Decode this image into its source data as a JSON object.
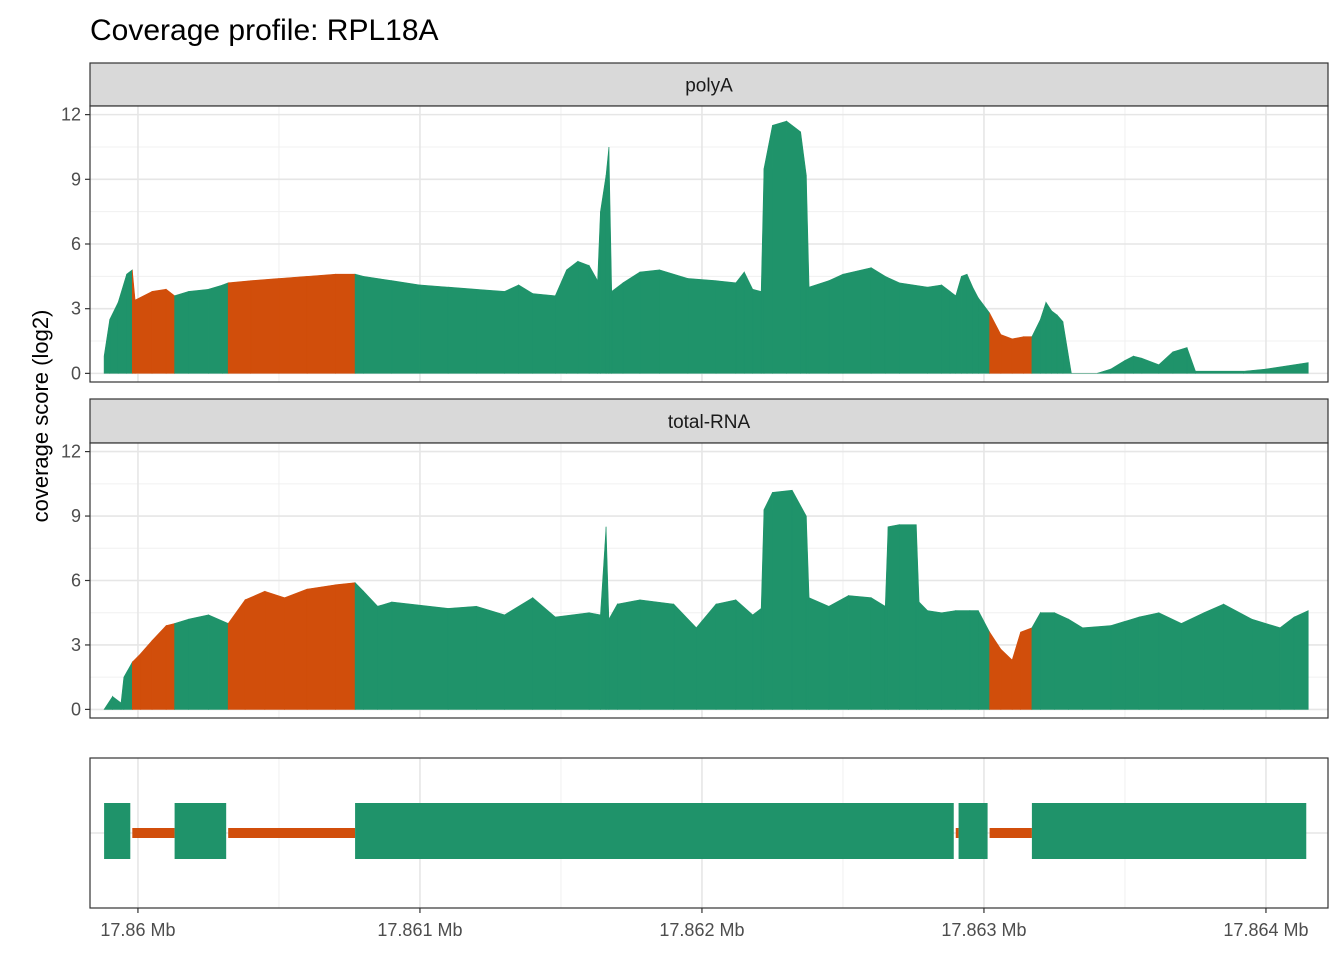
{
  "chart_data": {
    "type": "area",
    "title": "Coverage profile: RPL18A",
    "ylabel": "coverage score (log2)",
    "xlabel": "",
    "x_units": "Mb",
    "xlim": [
      17.85983,
      17.86422
    ],
    "ylim": [
      -0.4,
      12.4
    ],
    "yticks": [
      0,
      3,
      6,
      9,
      12
    ],
    "ytick_labels": [
      "0",
      "3",
      "6",
      "9",
      "12"
    ],
    "xticks": [
      17.86,
      17.861,
      17.862,
      17.863,
      17.864
    ],
    "xtick_labels": [
      "17.86 Mb",
      "17.861 Mb",
      "17.862 Mb",
      "17.863 Mb",
      "17.864 Mb"
    ],
    "grid": true,
    "legend": "none",
    "colors": {
      "exon": "#1f936a",
      "intron": "#d14e0b"
    },
    "region_order": "exon, intron, exon, intron, exon, intron, exon, intron, exon",
    "regions": [
      {
        "kind": "exon",
        "start": 17.85988,
        "end": 17.85998
      },
      {
        "kind": "intron",
        "start": 17.85998,
        "end": 17.86013
      },
      {
        "kind": "exon",
        "start": 17.86013,
        "end": 17.86032
      },
      {
        "kind": "intron",
        "start": 17.86032,
        "end": 17.86077
      },
      {
        "kind": "exon",
        "start": 17.86077,
        "end": 17.8629
      },
      {
        "kind": "intron",
        "start": 17.8629,
        "end": 17.86291
      },
      {
        "kind": "exon",
        "start": 17.86291,
        "end": 17.86302
      },
      {
        "kind": "intron",
        "start": 17.86302,
        "end": 17.86317
      },
      {
        "kind": "exon",
        "start": 17.86317,
        "end": 17.86415
      }
    ],
    "panels": [
      {
        "strip": "polyA",
        "profile": [
          [
            17.85988,
            0.8
          ],
          [
            17.8599,
            2.5
          ],
          [
            17.85993,
            3.3
          ],
          [
            17.85996,
            4.6
          ],
          [
            17.85998,
            4.8
          ],
          [
            17.85999,
            3.4
          ],
          [
            17.86005,
            3.8
          ],
          [
            17.8601,
            3.9
          ],
          [
            17.86013,
            3.6
          ],
          [
            17.86018,
            3.8
          ],
          [
            17.86025,
            3.9
          ],
          [
            17.8603,
            4.1
          ],
          [
            17.86032,
            4.2
          ],
          [
            17.8604,
            4.3
          ],
          [
            17.8605,
            4.4
          ],
          [
            17.8606,
            4.5
          ],
          [
            17.8607,
            4.6
          ],
          [
            17.86077,
            4.6
          ],
          [
            17.8608,
            4.5
          ],
          [
            17.8609,
            4.3
          ],
          [
            17.861,
            4.1
          ],
          [
            17.8611,
            4.0
          ],
          [
            17.8612,
            3.9
          ],
          [
            17.8613,
            3.8
          ],
          [
            17.86135,
            4.1
          ],
          [
            17.8614,
            3.7
          ],
          [
            17.86148,
            3.6
          ],
          [
            17.86152,
            4.8
          ],
          [
            17.86156,
            5.2
          ],
          [
            17.8616,
            5.0
          ],
          [
            17.86163,
            4.3
          ],
          [
            17.86164,
            7.5
          ],
          [
            17.86166,
            9.2
          ],
          [
            17.86167,
            10.5
          ],
          [
            17.86168,
            3.8
          ],
          [
            17.86172,
            4.2
          ],
          [
            17.86178,
            4.7
          ],
          [
            17.86185,
            4.8
          ],
          [
            17.86195,
            4.4
          ],
          [
            17.86205,
            4.3
          ],
          [
            17.86212,
            4.2
          ],
          [
            17.86215,
            4.7
          ],
          [
            17.86218,
            3.9
          ],
          [
            17.86221,
            3.8
          ],
          [
            17.86222,
            9.5
          ],
          [
            17.86225,
            11.5
          ],
          [
            17.8623,
            11.7
          ],
          [
            17.86235,
            11.2
          ],
          [
            17.86237,
            9.2
          ],
          [
            17.86238,
            4.0
          ],
          [
            17.86245,
            4.3
          ],
          [
            17.8625,
            4.6
          ],
          [
            17.8626,
            4.9
          ],
          [
            17.86265,
            4.5
          ],
          [
            17.8627,
            4.2
          ],
          [
            17.8628,
            4.0
          ],
          [
            17.86285,
            4.1
          ],
          [
            17.86288,
            3.8
          ],
          [
            17.8629,
            3.6
          ],
          [
            17.86292,
            4.5
          ],
          [
            17.86294,
            4.6
          ],
          [
            17.86296,
            4.0
          ],
          [
            17.86298,
            3.5
          ],
          [
            17.86302,
            2.8
          ],
          [
            17.86306,
            1.8
          ],
          [
            17.8631,
            1.6
          ],
          [
            17.86314,
            1.7
          ],
          [
            17.86317,
            1.7
          ],
          [
            17.8632,
            2.5
          ],
          [
            17.86322,
            3.3
          ],
          [
            17.86324,
            2.9
          ],
          [
            17.86326,
            2.7
          ],
          [
            17.86328,
            2.4
          ],
          [
            17.86331,
            0.0
          ],
          [
            17.8634,
            0.0
          ],
          [
            17.86345,
            0.2
          ],
          [
            17.8635,
            0.6
          ],
          [
            17.86353,
            0.8
          ],
          [
            17.86356,
            0.7
          ],
          [
            17.86362,
            0.4
          ],
          [
            17.86367,
            1.0
          ],
          [
            17.86372,
            1.2
          ],
          [
            17.86375,
            0.1
          ],
          [
            17.86392,
            0.1
          ],
          [
            17.864,
            0.2
          ],
          [
            17.86415,
            0.5
          ]
        ]
      },
      {
        "strip": "total-RNA",
        "profile": [
          [
            17.85988,
            0.0
          ],
          [
            17.85991,
            0.6
          ],
          [
            17.85994,
            0.3
          ],
          [
            17.85995,
            1.5
          ],
          [
            17.85998,
            2.2
          ],
          [
            17.86001,
            2.6
          ],
          [
            17.86005,
            3.2
          ],
          [
            17.8601,
            3.9
          ],
          [
            17.86013,
            4.0
          ],
          [
            17.86018,
            4.2
          ],
          [
            17.86025,
            4.4
          ],
          [
            17.86032,
            4.0
          ],
          [
            17.86038,
            5.1
          ],
          [
            17.86045,
            5.5
          ],
          [
            17.86052,
            5.2
          ],
          [
            17.8606,
            5.6
          ],
          [
            17.8607,
            5.8
          ],
          [
            17.86077,
            5.9
          ],
          [
            17.8608,
            5.5
          ],
          [
            17.86085,
            4.8
          ],
          [
            17.8609,
            5.0
          ],
          [
            17.8611,
            4.7
          ],
          [
            17.8612,
            4.8
          ],
          [
            17.8613,
            4.4
          ],
          [
            17.8614,
            5.2
          ],
          [
            17.86148,
            4.3
          ],
          [
            17.8616,
            4.5
          ],
          [
            17.86164,
            4.4
          ],
          [
            17.86166,
            8.5
          ],
          [
            17.86167,
            4.2
          ],
          [
            17.8617,
            4.9
          ],
          [
            17.86178,
            5.1
          ],
          [
            17.8619,
            4.9
          ],
          [
            17.86198,
            3.8
          ],
          [
            17.86205,
            4.9
          ],
          [
            17.86212,
            5.1
          ],
          [
            17.86218,
            4.4
          ],
          [
            17.86221,
            4.7
          ],
          [
            17.86222,
            9.3
          ],
          [
            17.86225,
            10.1
          ],
          [
            17.86232,
            10.2
          ],
          [
            17.86237,
            9.0
          ],
          [
            17.86238,
            5.2
          ],
          [
            17.86245,
            4.8
          ],
          [
            17.86252,
            5.3
          ],
          [
            17.8626,
            5.2
          ],
          [
            17.86265,
            4.8
          ],
          [
            17.86266,
            8.5
          ],
          [
            17.8627,
            8.6
          ],
          [
            17.86276,
            8.6
          ],
          [
            17.86277,
            5.0
          ],
          [
            17.8628,
            4.6
          ],
          [
            17.86285,
            4.5
          ],
          [
            17.8629,
            4.6
          ],
          [
            17.86295,
            4.6
          ],
          [
            17.86298,
            4.6
          ],
          [
            17.86302,
            3.6
          ],
          [
            17.86306,
            2.8
          ],
          [
            17.8631,
            2.3
          ],
          [
            17.86313,
            3.6
          ],
          [
            17.86317,
            3.8
          ],
          [
            17.8632,
            4.5
          ],
          [
            17.86325,
            4.5
          ],
          [
            17.8633,
            4.2
          ],
          [
            17.86335,
            3.8
          ],
          [
            17.86345,
            3.9
          ],
          [
            17.8635,
            4.1
          ],
          [
            17.86355,
            4.3
          ],
          [
            17.86362,
            4.5
          ],
          [
            17.8637,
            4.0
          ],
          [
            17.86378,
            4.5
          ],
          [
            17.86385,
            4.9
          ],
          [
            17.86395,
            4.2
          ],
          [
            17.86405,
            3.8
          ],
          [
            17.8641,
            4.3
          ],
          [
            17.86415,
            4.6
          ]
        ]
      }
    ]
  }
}
